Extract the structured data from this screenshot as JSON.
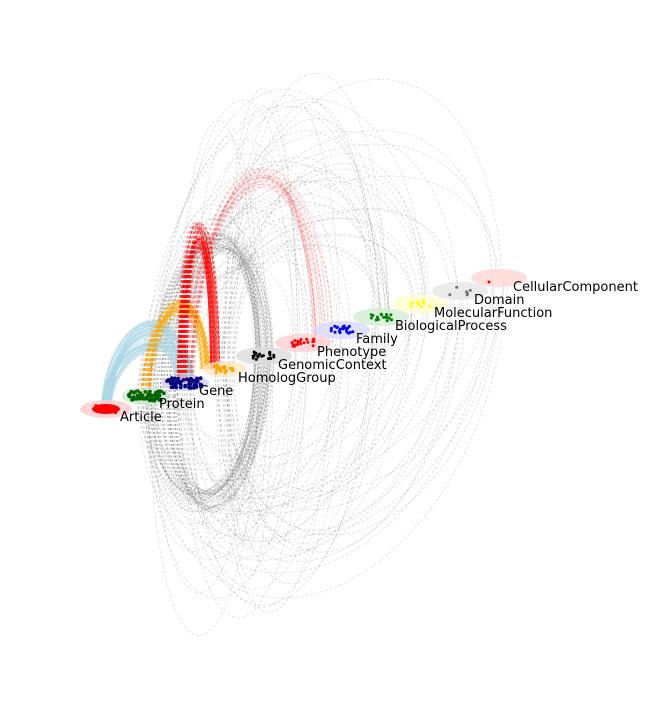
{
  "graph": {
    "nodes": [
      {
        "id": "article",
        "label": "Article",
        "color": "#ff0000",
        "halo": "#ffcccc",
        "dots": 14
      },
      {
        "id": "protein",
        "label": "Protein",
        "color": "#006400",
        "halo": "#cfe6cf",
        "dots": 60
      },
      {
        "id": "gene",
        "label": "Gene",
        "color": "#000080",
        "halo": "#d0d0ee",
        "dots": 60
      },
      {
        "id": "homolog",
        "label": "HomologGroup",
        "color": "#ffa500",
        "halo": "#ffe9c4",
        "dots": 24
      },
      {
        "id": "genomic",
        "label": "GenomicContext",
        "color": "#000000",
        "halo": "#dcdcdc",
        "dots": 22
      },
      {
        "id": "phenotype",
        "label": "Phenotype",
        "color": "#ff0000",
        "halo": "#ffd0d0",
        "dots": 20
      },
      {
        "id": "family",
        "label": "Family",
        "color": "#0000ff",
        "halo": "#d8d8ff",
        "dots": 22
      },
      {
        "id": "bioproc",
        "label": "BiologicalProcess",
        "color": "#008000",
        "halo": "#d4ecd4",
        "dots": 18
      },
      {
        "id": "molfunc",
        "label": "MolecularFunction",
        "color": "#ffff00",
        "halo": "#ffffcc",
        "dots": 10
      },
      {
        "id": "domain",
        "label": "Domain",
        "color": "#707070",
        "halo": "#e6e6e6",
        "dots": 6
      },
      {
        "id": "cellcomp",
        "label": "CellularComponent",
        "color": "#ff0000",
        "halo": "#ffd6d6",
        "dots": 1
      }
    ],
    "edge_colors": {
      "article_protein": "#add8e6",
      "protein_homolog": "#ffa500",
      "gene_phenotype": "#ff0000",
      "ontology": "#808080"
    }
  }
}
